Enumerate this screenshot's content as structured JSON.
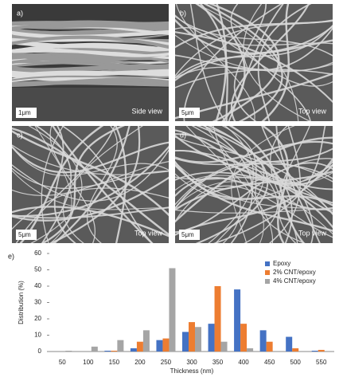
{
  "panels": [
    {
      "label": "a)",
      "scale": "1μm",
      "view": "Side view"
    },
    {
      "label": "b)",
      "scale": "5μm",
      "view": "Top view"
    },
    {
      "label": "c)",
      "scale": "5μm",
      "view": "Top view"
    },
    {
      "label": "d)",
      "scale": "5μm",
      "view": "Top view"
    }
  ],
  "chart_data": {
    "type": "bar",
    "panel_label": "e)",
    "x_label": "Thickness (nm)",
    "y_label": "Distribution (%)",
    "categories": [
      "50",
      "100",
      "150",
      "200",
      "250",
      "300",
      "350",
      "400",
      "450",
      "500",
      "550"
    ],
    "series": [
      {
        "name": "Epoxy",
        "color": "#4472c4",
        "values": [
          0,
          0,
          0.5,
          2,
          7,
          12,
          17,
          38,
          13,
          9,
          0.5
        ]
      },
      {
        "name": "2% CNT/epoxy",
        "color": "#ed7d31",
        "values": [
          0,
          0,
          0.5,
          6,
          8,
          18,
          40,
          17,
          6,
          2,
          1
        ]
      },
      {
        "name": "4% CNT/epoxy",
        "color": "#a5a5a5",
        "values": [
          0.5,
          3,
          7,
          13,
          51,
          15,
          6,
          2,
          0,
          0,
          0
        ]
      }
    ],
    "ylim": [
      0,
      60
    ],
    "yticks": [
      0,
      10,
      20,
      30,
      40,
      50,
      60
    ],
    "grid": false,
    "legend": "upper right"
  }
}
